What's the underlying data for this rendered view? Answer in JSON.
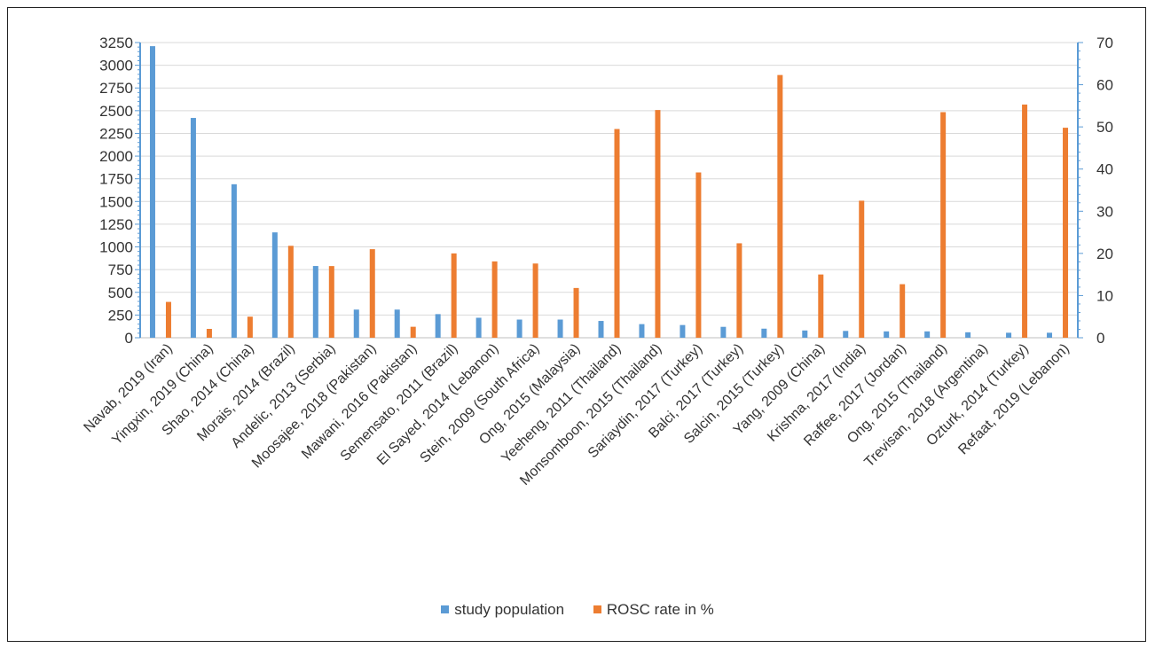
{
  "chart_data": {
    "type": "bar",
    "categories": [
      "Navab, 2019 (Iran)",
      "Yingxin, 2019 (China)",
      "Shao, 2014 (China)",
      "Morais, 2014 (Brazil)",
      "Andelic, 2013 (Serbia)",
      "Moosajee, 2018 (Pakistan)",
      "Mawani, 2016 (Pakistan)",
      "Semensato, 2011 (Brazil)",
      "El Sayed, 2014 (Lebanon)",
      "Stein, 2009 (South Africa)",
      "Ong, 2015 (Malaysia)",
      "Yeeheng, 2011 (Thailand)",
      "Monsomboon, 2015 (Thailand)",
      "Sariaydin, 2017 (Turkey)",
      "Balci, 2017 (Turkey)",
      "Salcin, 2015 (Turkey)",
      "Yang, 2009 (China)",
      "Krishna, 2017 (India)",
      "Raffee, 2017 (Jordan)",
      "Ong, 2015 (Thailand)",
      "Trevisan, 2018 (Argentina)",
      "Ozturk, 2014 (Turkey)",
      "Refaat, 2019 (Lebanon)"
    ],
    "series": [
      {
        "name": "study population",
        "axis": "left",
        "color": "#5b9bd5",
        "values": [
          3210,
          2420,
          1690,
          1160,
          790,
          310,
          310,
          260,
          220,
          200,
          200,
          185,
          150,
          140,
          120,
          100,
          80,
          75,
          70,
          70,
          60,
          55,
          55
        ]
      },
      {
        "name": "ROSC rate in %",
        "axis": "right",
        "color": "#ed7d31",
        "values": [
          8.5,
          2.1,
          5.0,
          21.8,
          17.0,
          21.0,
          2.6,
          20.0,
          18.1,
          17.6,
          11.8,
          49.5,
          54.0,
          39.2,
          22.4,
          62.3,
          15.0,
          32.5,
          12.7,
          53.5,
          0,
          55.3,
          49.8
        ]
      }
    ],
    "ylim_left": [
      0,
      3250
    ],
    "yticks_left": [
      "0",
      "250",
      "500",
      "750",
      "1000",
      "1250",
      "1500",
      "1750",
      "2000",
      "2250",
      "2500",
      "2750",
      "3000",
      "3250"
    ],
    "ylim_right": [
      0,
      70
    ],
    "yticks_right": [
      "0",
      "10",
      "20",
      "30",
      "40",
      "50",
      "60",
      "70"
    ],
    "grid": true,
    "legend_position": "bottom",
    "title": "",
    "xlabel": "",
    "ylabel": ""
  }
}
